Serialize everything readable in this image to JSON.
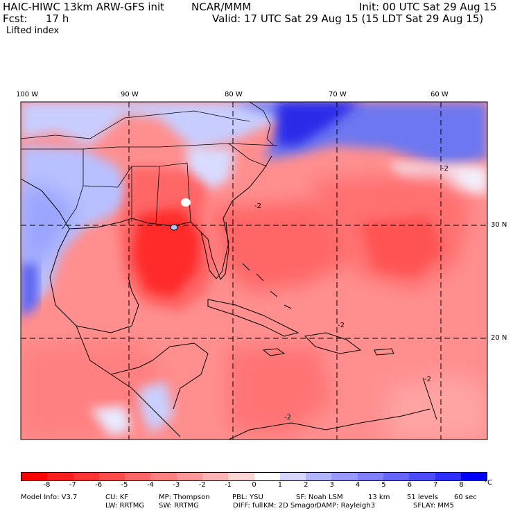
{
  "header": {
    "model_title": "HAIC-HIWC 13km ARW-GFS init",
    "org": "NCAR/MMM",
    "init": "Init: 00 UTC Sat 29 Aug 15",
    "fcst": "Fcst:",
    "fcst_hours": "17 h",
    "valid": "Valid: 17 UTC Sat 29 Aug 15 (15 LDT Sat 29 Aug 15)",
    "field": "Lifted index"
  },
  "map": {
    "lon_labels": [
      "100 W",
      "90 W",
      "80 W",
      "70 W",
      "60 W"
    ],
    "lat_labels": [
      "30 N",
      "20 N"
    ],
    "contour_label": "-2"
  },
  "colorbar": {
    "ticks": [
      "-8",
      "-7",
      "-6",
      "-5",
      "-4",
      "-3",
      "-2",
      "-1",
      "0",
      "1",
      "2",
      "3",
      "4",
      "5",
      "6",
      "7",
      "8"
    ],
    "unit": "°C",
    "colors": [
      "#ff0000",
      "#ff1e1e",
      "#ff3333",
      "#ff4d4d",
      "#ff6666",
      "#ff8080",
      "#ff9999",
      "#ffb3b3",
      "#ffd6d6",
      "#ffffff",
      "#d6d6ff",
      "#b3b3ff",
      "#9999ff",
      "#8080ff",
      "#6666ff",
      "#4d4dff",
      "#2e2eff",
      "#0000ff"
    ]
  },
  "model_info": {
    "line1": [
      "Model Info: V3.7",
      "CU: KF",
      "MP: Thompson",
      "PBL: YSU",
      "SF: Noah LSM",
      "13 km",
      "51 levels",
      "60 sec"
    ],
    "line2": [
      "LW: RRTMG",
      "SW: RRTMG",
      "DIFF: full",
      "KM: 2D Smagor",
      "DAMP: Rayleigh3",
      "SFLAY: MM5"
    ]
  }
}
